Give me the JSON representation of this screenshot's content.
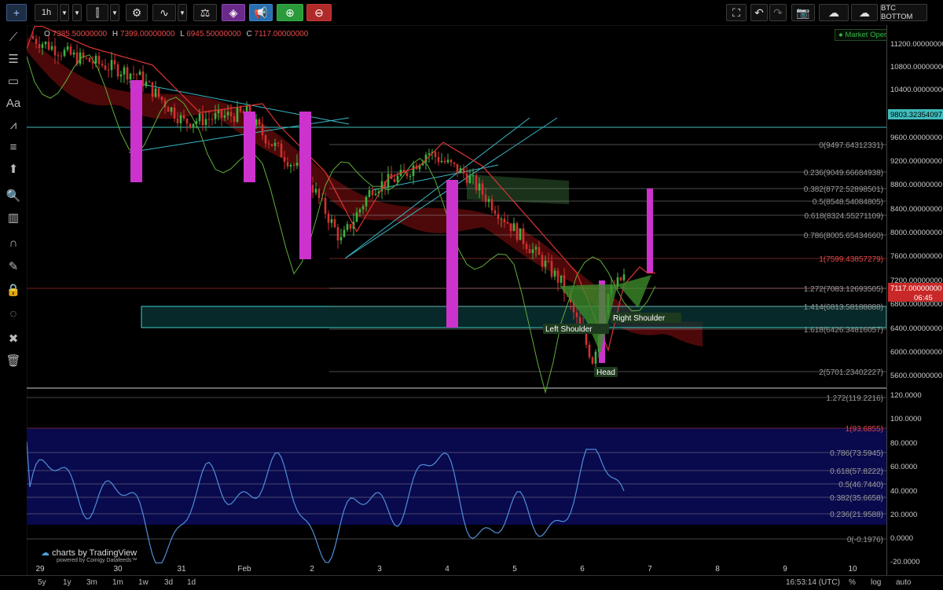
{
  "toolbar": {
    "interval": "1h",
    "symbol_button": "BTC BOTTOM"
  },
  "legend": {
    "o_label": "O",
    "o_value": "7385.50000000",
    "h_label": "H",
    "h_value": "7399.00000000",
    "l_label": "L",
    "l_value": "6945.50000000",
    "c_label": "C",
    "c_value": "7117.00000000"
  },
  "market_status": "Market Open",
  "price_axis": {
    "ticks": [
      "11200.00000000",
      "10800.00000000",
      "10400.00000000",
      "9600.00000000",
      "9200.00000000",
      "8800.00000000",
      "8400.00000000",
      "8000.00000000",
      "7600.00000000",
      "7200.00000000",
      "6800.00000000",
      "6400.00000000",
      "6000.00000000",
      "5600.00000000"
    ],
    "last_price": "7117.00000000",
    "countdown": "06:45",
    "hline_label": "9803.32354097"
  },
  "fib_levels": [
    {
      "label": "0(9497.64312331)",
      "color": "#9a9a9a"
    },
    {
      "label": "0.236(9049.66684938)",
      "color": "#9a9a9a"
    },
    {
      "label": "0.382(8772.52898501)",
      "color": "#9a9a9a"
    },
    {
      "label": "0.5(8548.54084805)",
      "color": "#9a9a9a"
    },
    {
      "label": "0.618(8324.55271109)",
      "color": "#9a9a9a"
    },
    {
      "label": "0.786(8005.65434660)",
      "color": "#9a9a9a"
    },
    {
      "label": "1(7599.43857279)",
      "color": "#e04848"
    },
    {
      "label": "1.272(7083.12693505)",
      "color": "#9a9a9a"
    },
    {
      "label": "1.414(6813.58188888)",
      "color": "#9a9a9a"
    },
    {
      "label": "1.618(6426.34816057)",
      "color": "#9a9a9a"
    },
    {
      "label": "2(5701.23402227)",
      "color": "#9a9a9a"
    }
  ],
  "pattern_labels": {
    "left_shoulder": "Left Shoulder",
    "head": "Head",
    "right_shoulder": "Right Shoulder"
  },
  "osc_axis": {
    "ticks": [
      "120.0000",
      "100.0000",
      "80.0000",
      "60.0000",
      "40.0000",
      "20.0000",
      "0.0000",
      "-20.0000"
    ]
  },
  "osc_fib": [
    {
      "label": "1.272(119.2216)",
      "color": "#9a9a9a"
    },
    {
      "label": "1(93.6855)",
      "color": "#e04848"
    },
    {
      "label": "0.786(73.5945)",
      "color": "#9a9a9a"
    },
    {
      "label": "0.618(57.8222)",
      "color": "#9a9a9a"
    },
    {
      "label": "0.5(46.7440)",
      "color": "#9a9a9a"
    },
    {
      "label": "0.382(35.6658)",
      "color": "#9a9a9a"
    },
    {
      "label": "0.236(21.9588)",
      "color": "#9a9a9a"
    },
    {
      "label": "0(-0.1976)",
      "color": "#9a9a9a"
    }
  ],
  "time_axis": [
    "29",
    "30",
    "31",
    "Feb",
    "2",
    "3",
    "4",
    "5",
    "6",
    "7",
    "8",
    "9",
    "10"
  ],
  "bottom": {
    "ranges": [
      "5y",
      "1y",
      "3m",
      "1m",
      "1w",
      "3d",
      "1d"
    ],
    "clock": "16:53:14 (UTC)",
    "percent": "%",
    "log": "log",
    "auto": "auto"
  },
  "branding": {
    "title": "charts by TradingView",
    "sub": "powered by Coinigy Datafeeds™"
  },
  "colors": {
    "candle_up": "#3fb33f",
    "candle_down": "#d23030",
    "cloud_bear": "#5a0b0b",
    "cloud_bull": "#1f3a1f",
    "highlight": "#cc33cc",
    "zone": "#0b3b3b",
    "osc_line": "#4f8fd8",
    "osc_band": "#0a0a55"
  }
}
